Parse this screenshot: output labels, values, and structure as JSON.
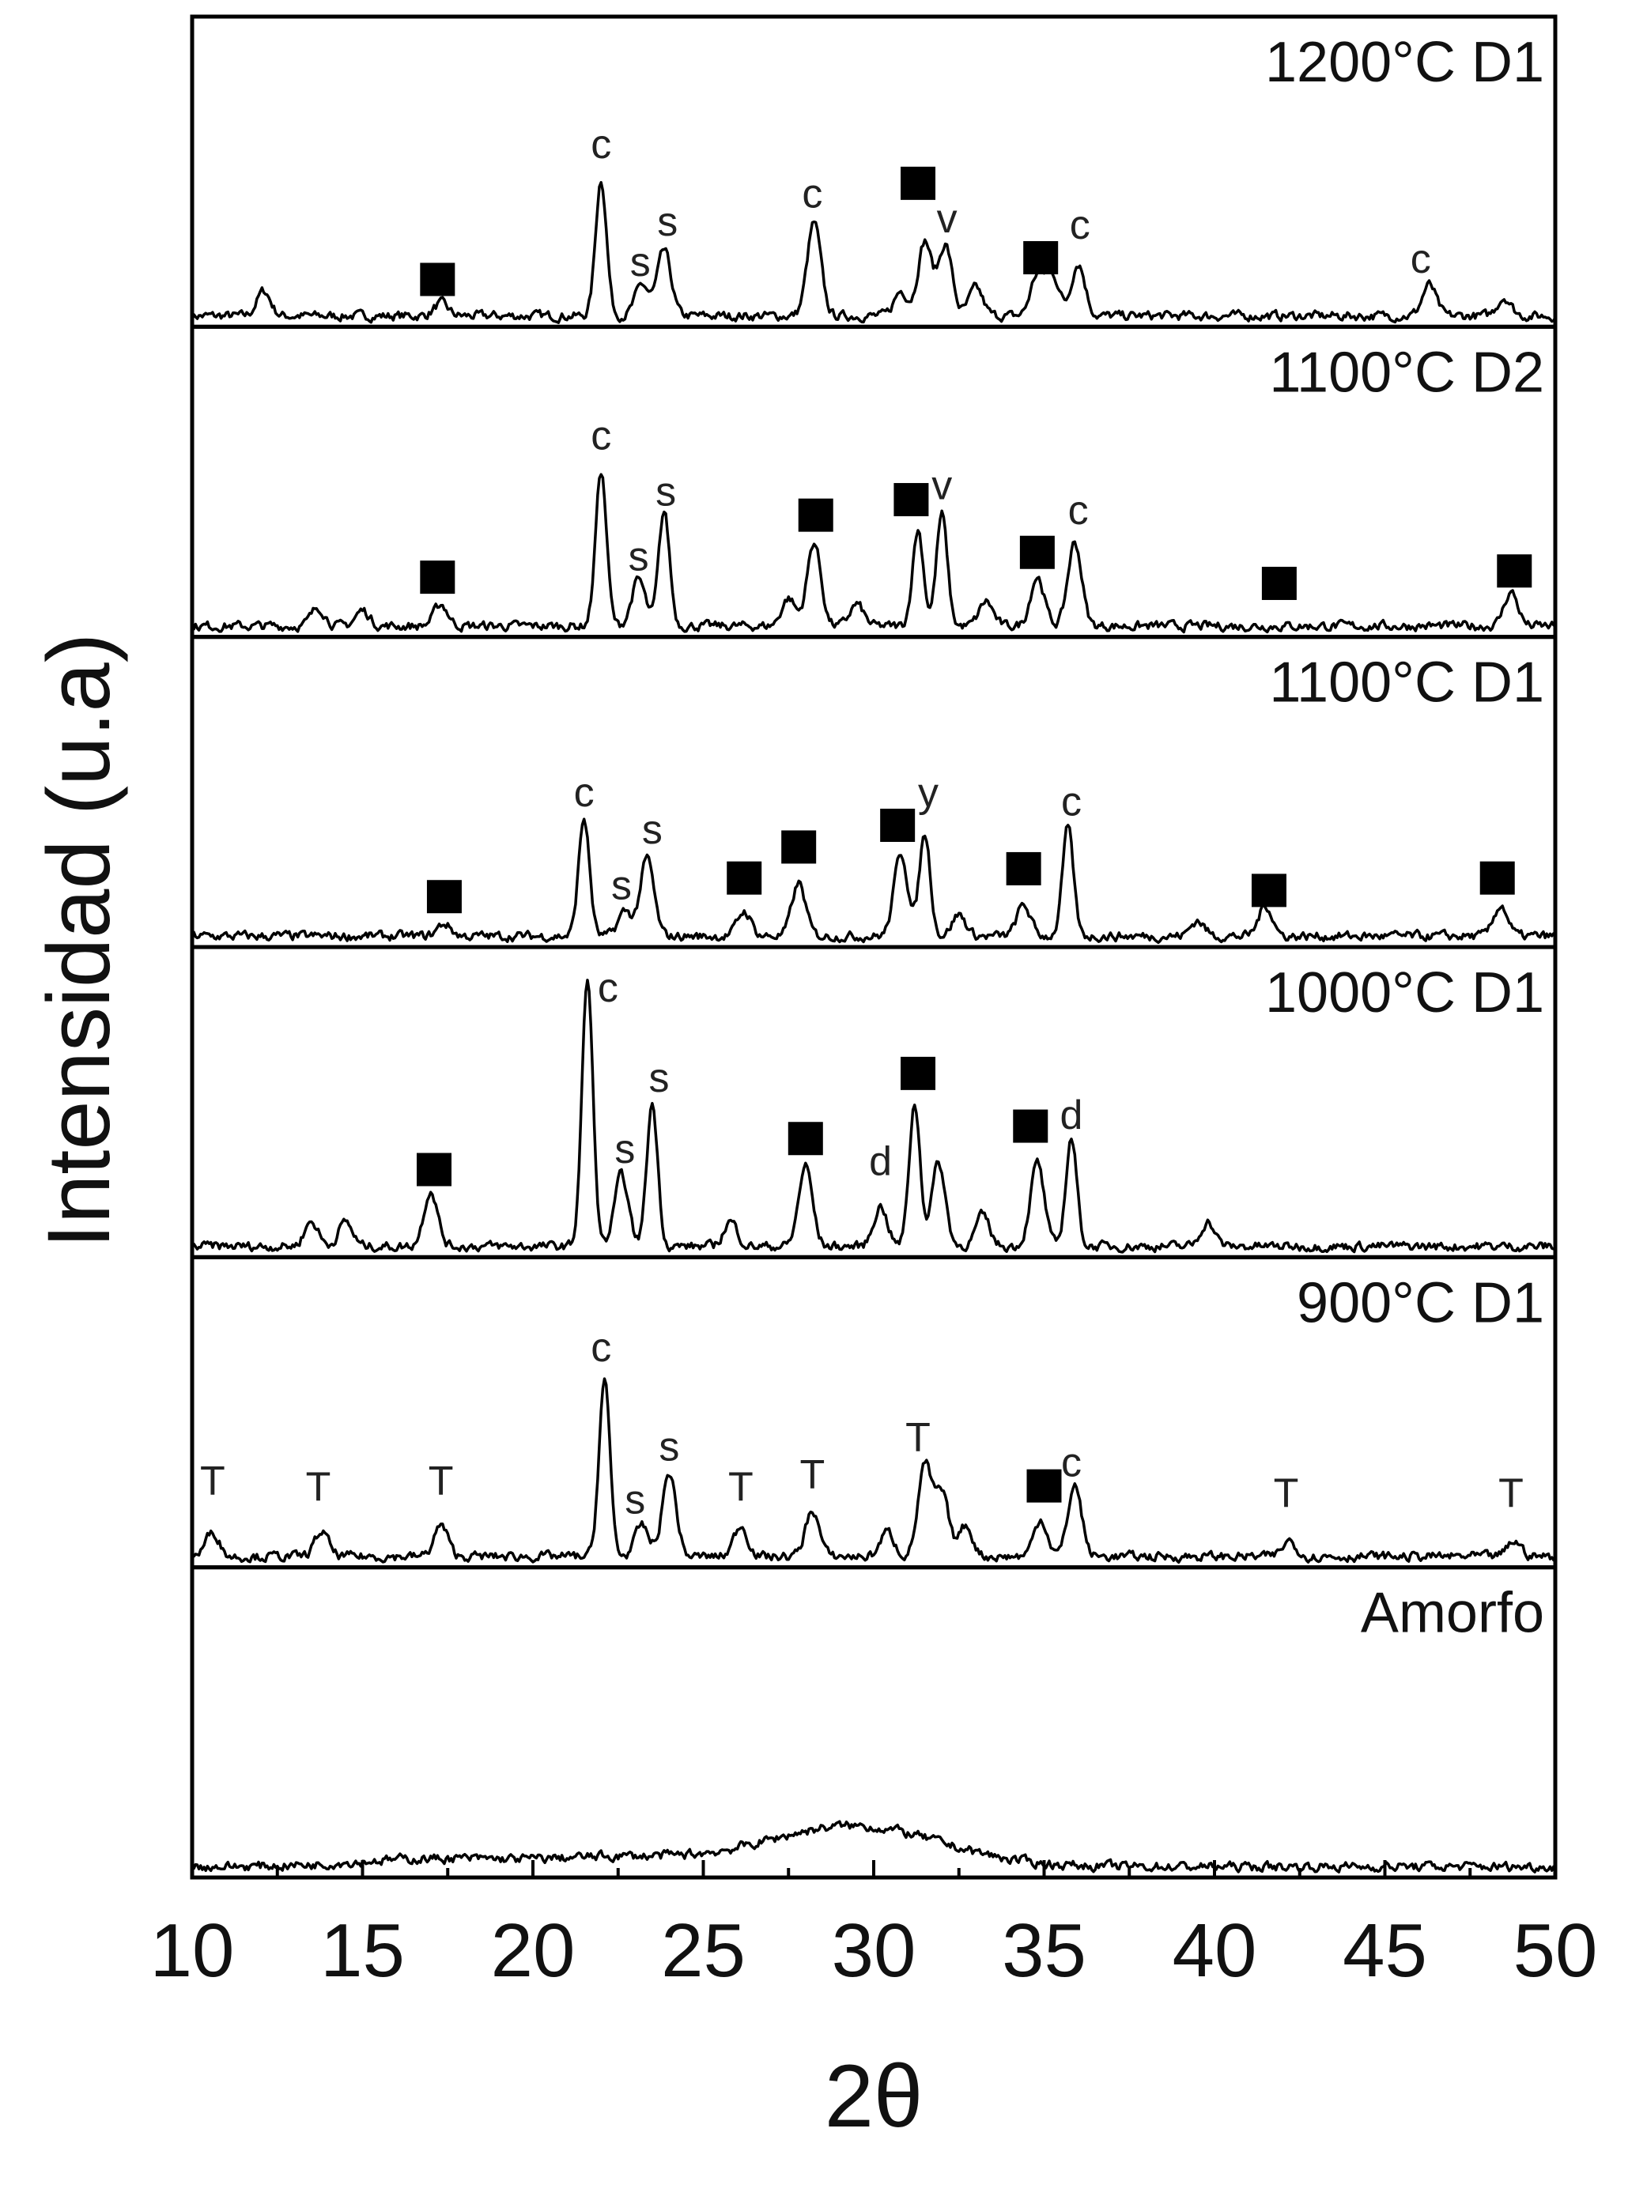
{
  "chart_data": {
    "type": "line",
    "xlabel": "2θ",
    "ylabel": "Intensidad (u.a)",
    "xlim": [
      10,
      50
    ],
    "xticks": [
      "10",
      "15",
      "20",
      "25",
      "30",
      "35",
      "40",
      "45",
      "50"
    ],
    "grid": false,
    "line_color": "#000000",
    "panels": [
      {
        "label": "1200°C D1",
        "peaks": [
          [
            12.1,
            0.08
          ],
          [
            17.3,
            0.04
          ],
          [
            22.0,
            0.44
          ],
          [
            23.2,
            0.1
          ],
          [
            23.85,
            0.21
          ],
          [
            28.25,
            0.3
          ],
          [
            30.8,
            0.08
          ],
          [
            31.5,
            0.24
          ],
          [
            32.1,
            0.23
          ],
          [
            33.0,
            0.09
          ],
          [
            34.8,
            0.13
          ],
          [
            35.25,
            0.13
          ],
          [
            36.0,
            0.17
          ],
          [
            46.3,
            0.1
          ],
          [
            48.5,
            0.06
          ]
        ],
        "annotations": [
          [
            "■",
            17.2,
            0.15
          ],
          [
            "c",
            22.0,
            0.59
          ],
          [
            "s",
            23.15,
            0.21
          ],
          [
            "s",
            23.95,
            0.34
          ],
          [
            "c",
            28.2,
            0.43
          ],
          [
            "■",
            31.3,
            0.46
          ],
          [
            "v",
            32.15,
            0.35
          ],
          [
            "■",
            34.9,
            0.22
          ],
          [
            "c",
            36.05,
            0.33
          ],
          [
            "c",
            46.05,
            0.22
          ]
        ]
      },
      {
        "label": "1100°C D2",
        "peaks": [
          [
            13.7,
            0.06
          ],
          [
            15.0,
            0.05
          ],
          [
            17.3,
            0.07
          ],
          [
            22.0,
            0.5
          ],
          [
            23.1,
            0.15
          ],
          [
            23.85,
            0.37
          ],
          [
            27.5,
            0.09
          ],
          [
            28.25,
            0.27
          ],
          [
            29.5,
            0.07
          ],
          [
            31.3,
            0.31
          ],
          [
            32.0,
            0.36
          ],
          [
            33.3,
            0.08
          ],
          [
            34.8,
            0.16
          ],
          [
            35.9,
            0.27
          ],
          [
            48.7,
            0.11
          ]
        ],
        "annotations": [
          [
            "■",
            17.2,
            0.19
          ],
          [
            "c",
            22.0,
            0.65
          ],
          [
            "s",
            23.1,
            0.26
          ],
          [
            "s",
            23.9,
            0.47
          ],
          [
            "■",
            28.3,
            0.39
          ],
          [
            "■",
            31.1,
            0.44
          ],
          [
            "v",
            32.0,
            0.49
          ],
          [
            "■",
            34.8,
            0.27
          ],
          [
            "c",
            36.0,
            0.41
          ],
          [
            "■",
            41.9,
            0.17
          ],
          [
            "■",
            48.8,
            0.21
          ]
        ]
      },
      {
        "label": "1100°C D1",
        "peaks": [
          [
            17.4,
            0.04
          ],
          [
            21.5,
            0.38
          ],
          [
            22.7,
            0.08
          ],
          [
            23.35,
            0.25
          ],
          [
            26.2,
            0.08
          ],
          [
            27.8,
            0.17
          ],
          [
            30.8,
            0.27
          ],
          [
            31.5,
            0.33
          ],
          [
            32.5,
            0.07
          ],
          [
            34.4,
            0.1
          ],
          [
            35.7,
            0.35
          ],
          [
            39.5,
            0.05
          ],
          [
            41.5,
            0.1
          ],
          [
            48.4,
            0.1
          ]
        ],
        "annotations": [
          [
            "■",
            17.4,
            0.16
          ],
          [
            "c",
            21.5,
            0.5
          ],
          [
            "s",
            22.6,
            0.2
          ],
          [
            "s",
            23.5,
            0.38
          ],
          [
            "■",
            26.2,
            0.22
          ],
          [
            "■",
            27.8,
            0.32
          ],
          [
            "■",
            30.7,
            0.39
          ],
          [
            "y",
            31.6,
            0.5
          ],
          [
            "■",
            34.4,
            0.25
          ],
          [
            "c",
            35.8,
            0.47
          ],
          [
            "■",
            41.6,
            0.18
          ],
          [
            "■",
            48.3,
            0.22
          ]
        ]
      },
      {
        "label": "1000°C D1",
        "peaks": [
          [
            13.5,
            0.08
          ],
          [
            14.5,
            0.08
          ],
          [
            17.0,
            0.18
          ],
          [
            21.6,
            0.86
          ],
          [
            22.6,
            0.23
          ],
          [
            23.5,
            0.46
          ],
          [
            25.8,
            0.08
          ],
          [
            28.0,
            0.26
          ],
          [
            30.2,
            0.13
          ],
          [
            31.2,
            0.46
          ],
          [
            31.9,
            0.27
          ],
          [
            33.2,
            0.1
          ],
          [
            34.8,
            0.27
          ],
          [
            35.8,
            0.35
          ],
          [
            39.8,
            0.08
          ]
        ],
        "annotations": [
          [
            "■",
            17.1,
            0.28
          ],
          [
            "c",
            22.2,
            0.87
          ],
          [
            "s",
            22.7,
            0.35
          ],
          [
            "s",
            23.7,
            0.58
          ],
          [
            "■",
            28.0,
            0.38
          ],
          [
            "d",
            30.2,
            0.31
          ],
          [
            "■",
            31.3,
            0.59
          ],
          [
            "■",
            34.6,
            0.42
          ],
          [
            "d",
            35.8,
            0.46
          ]
        ]
      },
      {
        "label": "900°C D1",
        "peaks": [
          [
            10.6,
            0.08
          ],
          [
            13.8,
            0.08
          ],
          [
            17.3,
            0.1
          ],
          [
            22.1,
            0.57
          ],
          [
            23.2,
            0.1
          ],
          [
            24.0,
            0.27
          ],
          [
            26.1,
            0.1
          ],
          [
            28.2,
            0.15
          ],
          [
            30.4,
            0.08
          ],
          [
            31.5,
            0.29
          ],
          [
            32.0,
            0.2
          ],
          [
            32.7,
            0.1
          ],
          [
            34.9,
            0.12
          ],
          [
            35.9,
            0.23
          ],
          [
            42.2,
            0.05
          ],
          [
            48.8,
            0.05
          ]
        ],
        "annotations": [
          [
            "T",
            10.6,
            0.28
          ],
          [
            "T",
            13.7,
            0.26
          ],
          [
            "T",
            17.3,
            0.28
          ],
          [
            "c",
            22.0,
            0.71
          ],
          [
            "s",
            23.0,
            0.22
          ],
          [
            "s",
            24.0,
            0.39
          ],
          [
            "T",
            26.1,
            0.26
          ],
          [
            "T",
            28.2,
            0.3
          ],
          [
            "T",
            31.3,
            0.42
          ],
          [
            "■",
            35.0,
            0.26
          ],
          [
            "c",
            35.8,
            0.34
          ],
          [
            "T",
            42.1,
            0.24
          ],
          [
            "T",
            48.7,
            0.24
          ]
        ]
      },
      {
        "label": "Amorfo",
        "peaks": [
          [
            17.0,
            0.025
          ],
          [
            22.5,
            0.03
          ],
          [
            28.0,
            0.05
          ],
          [
            29.5,
            0.06
          ],
          [
            31.0,
            0.04
          ]
        ],
        "broad": true,
        "annotations": []
      }
    ]
  }
}
